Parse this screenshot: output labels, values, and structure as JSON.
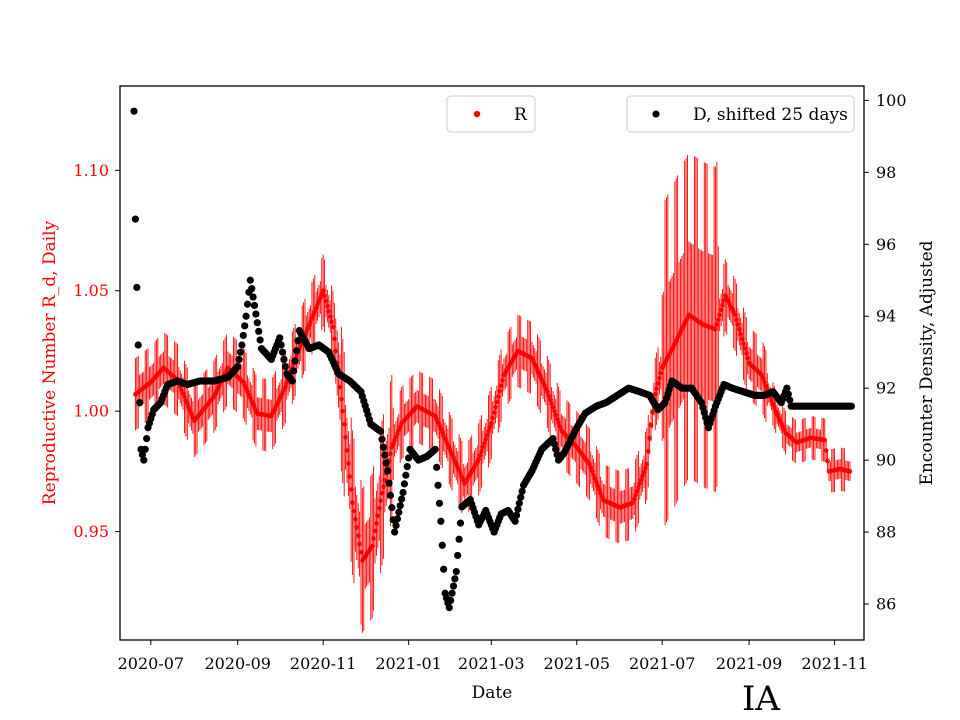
{
  "chart_data": {
    "type": "scatter",
    "state_label": "IA",
    "xlabel": "Date",
    "ylabel_left": "Reproductive Number R_d, Daily",
    "ylabel_right": "Encounter Density, Adjusted",
    "x_ticks": [
      "2020-07",
      "2020-09",
      "2020-11",
      "2021-01",
      "2021-03",
      "2021-05",
      "2021-07",
      "2021-09",
      "2021-11"
    ],
    "x_range": [
      "2020-06-09",
      "2021-11-22"
    ],
    "y_left_range": [
      0.905,
      1.135
    ],
    "y_left_ticks": [
      0.95,
      1.0,
      1.05,
      1.1
    ],
    "y_left_tick_labels": [
      "0.95",
      "1.00",
      "1.05",
      "1.10"
    ],
    "y_right_range": [
      85.0,
      100.4
    ],
    "y_right_ticks": [
      86,
      88,
      90,
      92,
      94,
      96,
      98,
      100
    ],
    "y_right_tick_labels": [
      "86",
      "88",
      "90",
      "92",
      "94",
      "96",
      "98",
      "100"
    ],
    "colors": {
      "R": "#ff0000",
      "D": "#000000",
      "left_axis_text": "#ff0000"
    },
    "series": [
      {
        "name": "R",
        "axis": "left",
        "color": "#ff0000",
        "error_bar_halfwidth_typical": 0.015,
        "points": [
          [
            "2020-06-20",
            1.007
          ],
          [
            "2020-07-01",
            1.012
          ],
          [
            "2020-07-10",
            1.018
          ],
          [
            "2020-07-20",
            1.013
          ],
          [
            "2020-08-01",
            0.996
          ],
          [
            "2020-08-15",
            1.006
          ],
          [
            "2020-08-25",
            1.018
          ],
          [
            "2020-09-05",
            1.012
          ],
          [
            "2020-09-15",
            0.999
          ],
          [
            "2020-09-25",
            0.998
          ],
          [
            "2020-10-05",
            1.01
          ],
          [
            "2020-10-15",
            1.026
          ],
          [
            "2020-10-25",
            1.04
          ],
          [
            "2020-11-01",
            1.05
          ],
          [
            "2020-11-08",
            1.035
          ],
          [
            "2020-11-15",
            1.0
          ],
          [
            "2020-11-22",
            0.962
          ],
          [
            "2020-11-29",
            0.938
          ],
          [
            "2020-12-06",
            0.944
          ],
          [
            "2020-12-13",
            0.966
          ],
          [
            "2020-12-20",
            0.985
          ],
          [
            "2020-12-27",
            0.995
          ],
          [
            "2021-01-07",
            1.002
          ],
          [
            "2021-01-20",
            0.998
          ],
          [
            "2021-02-01",
            0.982
          ],
          [
            "2021-02-10",
            0.97
          ],
          [
            "2021-02-20",
            0.98
          ],
          [
            "2021-03-01",
            0.995
          ],
          [
            "2021-03-10",
            1.015
          ],
          [
            "2021-03-20",
            1.025
          ],
          [
            "2021-03-30",
            1.022
          ],
          [
            "2021-04-10",
            1.008
          ],
          [
            "2021-04-20",
            0.992
          ],
          [
            "2021-05-01",
            0.985
          ],
          [
            "2021-05-10",
            0.978
          ],
          [
            "2021-05-20",
            0.963
          ],
          [
            "2021-06-01",
            0.96
          ],
          [
            "2021-06-10",
            0.962
          ],
          [
            "2021-06-20",
            0.978
          ],
          [
            "2021-06-25",
            1.005
          ],
          [
            "2021-07-01",
            1.018
          ],
          [
            "2021-07-10",
            1.028
          ],
          [
            "2021-07-20",
            1.04
          ],
          [
            "2021-07-30",
            1.036
          ],
          [
            "2021-08-08",
            1.034
          ],
          [
            "2021-08-15",
            1.048
          ],
          [
            "2021-08-22",
            1.04
          ],
          [
            "2021-09-01",
            1.02
          ],
          [
            "2021-09-10",
            1.015
          ],
          [
            "2021-09-20",
            1.0
          ],
          [
            "2021-09-27",
            0.991
          ],
          [
            "2021-10-05",
            0.987
          ],
          [
            "2021-10-15",
            0.989
          ],
          [
            "2021-10-25",
            0.988
          ],
          [
            "2021-10-28",
            0.975
          ],
          [
            "2021-11-05",
            0.976
          ],
          [
            "2021-11-12",
            0.975
          ]
        ]
      },
      {
        "name": "D, shifted 25 days",
        "axis": "right",
        "color": "#000000",
        "points": [
          [
            "2020-06-19",
            99.7
          ],
          [
            "2020-06-20",
            96.7
          ],
          [
            "2020-06-21",
            94.8
          ],
          [
            "2020-06-22",
            93.2
          ],
          [
            "2020-06-23",
            91.6
          ],
          [
            "2020-06-24",
            90.3
          ],
          [
            "2020-06-26",
            90.0
          ],
          [
            "2020-06-29",
            90.9
          ],
          [
            "2020-07-03",
            91.4
          ],
          [
            "2020-07-08",
            91.6
          ],
          [
            "2020-07-13",
            92.1
          ],
          [
            "2020-07-20",
            92.2
          ],
          [
            "2020-07-27",
            92.1
          ],
          [
            "2020-08-05",
            92.2
          ],
          [
            "2020-08-15",
            92.2
          ],
          [
            "2020-08-25",
            92.3
          ],
          [
            "2020-09-01",
            92.6
          ],
          [
            "2020-09-04",
            93.2
          ],
          [
            "2020-09-07",
            94.0
          ],
          [
            "2020-09-10",
            95.0
          ],
          [
            "2020-09-13",
            94.3
          ],
          [
            "2020-09-18",
            93.1
          ],
          [
            "2020-09-25",
            92.8
          ],
          [
            "2020-10-01",
            93.4
          ],
          [
            "2020-10-06",
            92.4
          ],
          [
            "2020-10-10",
            92.2
          ],
          [
            "2020-10-15",
            93.6
          ],
          [
            "2020-10-22",
            93.1
          ],
          [
            "2020-10-29",
            93.2
          ],
          [
            "2020-11-05",
            93.0
          ],
          [
            "2020-11-12",
            92.4
          ],
          [
            "2020-11-20",
            92.2
          ],
          [
            "2020-11-28",
            91.9
          ],
          [
            "2020-12-05",
            91.0
          ],
          [
            "2020-12-12",
            90.8
          ],
          [
            "2020-12-17",
            89.7
          ],
          [
            "2020-12-22",
            88.0
          ],
          [
            "2020-12-28",
            89.1
          ],
          [
            "2021-01-02",
            90.3
          ],
          [
            "2021-01-08",
            90.0
          ],
          [
            "2021-01-14",
            90.1
          ],
          [
            "2021-01-20",
            90.3
          ],
          [
            "2021-01-24",
            88.3
          ],
          [
            "2021-01-27",
            86.3
          ],
          [
            "2021-01-30",
            85.9
          ],
          [
            "2021-02-04",
            86.9
          ],
          [
            "2021-02-08",
            88.7
          ],
          [
            "2021-02-14",
            88.9
          ],
          [
            "2021-02-20",
            88.2
          ],
          [
            "2021-02-25",
            88.6
          ],
          [
            "2021-03-03",
            88.0
          ],
          [
            "2021-03-08",
            88.5
          ],
          [
            "2021-03-13",
            88.6
          ],
          [
            "2021-03-18",
            88.3
          ],
          [
            "2021-03-24",
            89.3
          ],
          [
            "2021-03-30",
            89.7
          ],
          [
            "2021-04-06",
            90.3
          ],
          [
            "2021-04-14",
            90.6
          ],
          [
            "2021-04-18",
            90.0
          ],
          [
            "2021-04-22",
            90.2
          ],
          [
            "2021-05-01",
            90.9
          ],
          [
            "2021-05-07",
            91.3
          ],
          [
            "2021-05-15",
            91.5
          ],
          [
            "2021-05-22",
            91.6
          ],
          [
            "2021-05-30",
            91.8
          ],
          [
            "2021-06-07",
            92.0
          ],
          [
            "2021-06-15",
            91.9
          ],
          [
            "2021-06-22",
            91.8
          ],
          [
            "2021-06-28",
            91.4
          ],
          [
            "2021-07-03",
            91.6
          ],
          [
            "2021-07-08",
            92.2
          ],
          [
            "2021-07-15",
            92.0
          ],
          [
            "2021-07-22",
            92.0
          ],
          [
            "2021-07-29",
            91.6
          ],
          [
            "2021-08-03",
            90.9
          ],
          [
            "2021-08-08",
            91.5
          ],
          [
            "2021-08-14",
            92.1
          ],
          [
            "2021-08-20",
            92.0
          ],
          [
            "2021-08-28",
            91.9
          ],
          [
            "2021-09-05",
            91.8
          ],
          [
            "2021-09-12",
            91.8
          ],
          [
            "2021-09-18",
            91.9
          ],
          [
            "2021-09-24",
            91.6
          ],
          [
            "2021-09-28",
            92.0
          ],
          [
            "2021-10-01",
            91.5
          ],
          [
            "2021-10-08",
            91.5
          ],
          [
            "2021-10-18",
            91.5
          ],
          [
            "2021-10-28",
            91.5
          ],
          [
            "2021-11-05",
            91.5
          ],
          [
            "2021-11-13",
            91.5
          ]
        ]
      }
    ],
    "legend": [
      {
        "label": "R",
        "color": "#ff0000",
        "placement": "top-center"
      },
      {
        "label": "D, shifted 25 days",
        "color": "#000000",
        "placement": "top-right"
      }
    ]
  }
}
